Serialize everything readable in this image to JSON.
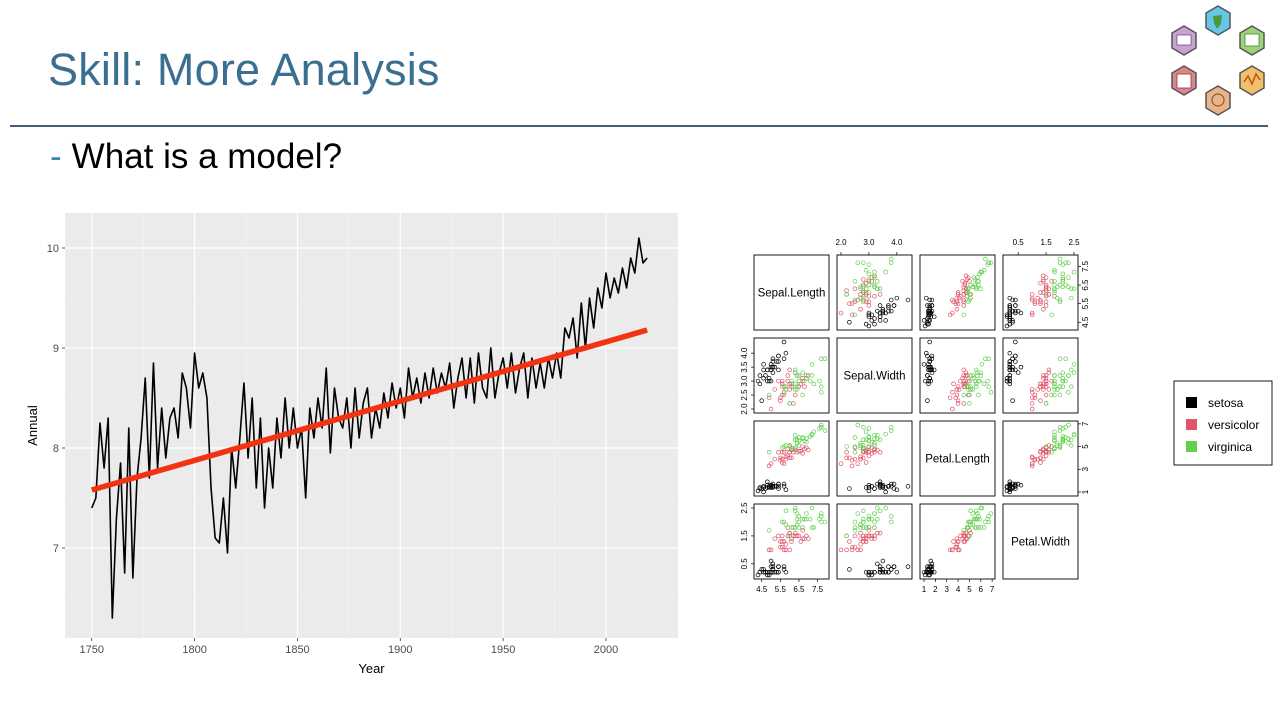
{
  "slide": {
    "title": "Skill: More Analysis",
    "bullet_dash": "-",
    "subtitle": "What is a model?"
  },
  "logo": {
    "icon": "hexagon-skills-logo",
    "hex_colors": [
      "#66c6e8",
      "#9fd07a",
      "#f1c06b",
      "#e9b48a",
      "#d9868c",
      "#c9a4cf"
    ]
  },
  "chart_data": [
    {
      "type": "line",
      "title": "",
      "xlabel": "Year",
      "ylabel": "Annual",
      "xlim": [
        1737,
        2035
      ],
      "ylim": [
        6.1,
        10.35
      ],
      "xticks": [
        1750,
        1800,
        1850,
        1900,
        1950,
        2000
      ],
      "yticks": [
        7,
        8,
        9,
        10
      ],
      "background": "#ebebeb",
      "grid": true,
      "series": [
        {
          "color": "#000000",
          "x": [
            1750,
            1752,
            1754,
            1756,
            1758,
            1760,
            1762,
            1764,
            1766,
            1768,
            1770,
            1772,
            1774,
            1776,
            1778,
            1780,
            1782,
            1784,
            1786,
            1788,
            1790,
            1792,
            1794,
            1796,
            1798,
            1800,
            1802,
            1804,
            1806,
            1808,
            1810,
            1812,
            1814,
            1816,
            1818,
            1820,
            1822,
            1824,
            1826,
            1828,
            1830,
            1832,
            1834,
            1836,
            1838,
            1840,
            1842,
            1844,
            1846,
            1848,
            1850,
            1852,
            1854,
            1856,
            1858,
            1860,
            1862,
            1864,
            1866,
            1868,
            1870,
            1872,
            1874,
            1876,
            1878,
            1880,
            1882,
            1884,
            1886,
            1888,
            1890,
            1892,
            1894,
            1896,
            1898,
            1900,
            1902,
            1904,
            1906,
            1908,
            1910,
            1912,
            1914,
            1916,
            1918,
            1920,
            1922,
            1924,
            1926,
            1928,
            1930,
            1932,
            1934,
            1936,
            1938,
            1940,
            1942,
            1944,
            1946,
            1948,
            1950,
            1952,
            1954,
            1956,
            1958,
            1960,
            1962,
            1964,
            1966,
            1968,
            1970,
            1972,
            1974,
            1976,
            1978,
            1980,
            1982,
            1984,
            1986,
            1988,
            1990,
            1992,
            1994,
            1996,
            1998,
            2000,
            2002,
            2004,
            2006,
            2008,
            2010,
            2012,
            2014,
            2016,
            2018,
            2020
          ],
          "y": [
            7.4,
            7.5,
            8.25,
            7.8,
            8.3,
            6.3,
            7.3,
            7.85,
            6.75,
            8.2,
            6.7,
            7.7,
            8.1,
            8.7,
            7.7,
            8.85,
            7.8,
            8.4,
            7.9,
            8.3,
            8.4,
            8.1,
            8.75,
            8.6,
            8.2,
            8.95,
            8.6,
            8.75,
            8.5,
            7.6,
            7.1,
            7.05,
            7.5,
            6.95,
            8.0,
            7.6,
            8.1,
            8.65,
            7.9,
            8.5,
            7.6,
            8.3,
            7.4,
            8.0,
            7.6,
            8.3,
            7.9,
            8.5,
            8.0,
            8.4,
            8.0,
            8.2,
            7.5,
            8.4,
            8.1,
            8.5,
            8.2,
            8.8,
            7.95,
            8.6,
            8.3,
            8.2,
            8.5,
            8.0,
            8.6,
            8.1,
            8.45,
            8.6,
            8.1,
            8.4,
            8.2,
            8.55,
            8.3,
            8.65,
            8.4,
            8.6,
            8.3,
            8.8,
            8.5,
            8.7,
            8.45,
            8.75,
            8.5,
            8.8,
            8.55,
            8.75,
            8.6,
            8.85,
            8.4,
            8.7,
            8.9,
            8.5,
            8.9,
            8.45,
            8.95,
            8.6,
            8.5,
            9.0,
            8.5,
            8.75,
            8.9,
            8.6,
            8.95,
            8.55,
            8.8,
            8.95,
            8.5,
            8.9,
            8.6,
            8.85,
            8.6,
            8.9,
            8.7,
            8.95,
            8.7,
            9.2,
            9.1,
            9.3,
            8.9,
            9.45,
            9.0,
            9.5,
            9.2,
            9.6,
            9.4,
            9.75,
            9.5,
            9.7,
            9.55,
            9.8,
            9.6,
            9.9,
            9.75,
            10.1,
            9.85,
            9.9
          ]
        },
        {
          "color": "#f23312",
          "x": [
            1750,
            2020
          ],
          "y": [
            7.58,
            9.18
          ]
        }
      ]
    },
    {
      "type": "scatter",
      "title": "",
      "variables": [
        "Sepal.Length",
        "Sepal.Width",
        "Petal.Length",
        "Petal.Width"
      ],
      "ranges": [
        [
          4.3,
          7.9
        ],
        [
          2.0,
          4.4
        ],
        [
          1.0,
          6.9
        ],
        [
          0.1,
          2.5
        ]
      ],
      "axis_ticks": {
        "Sepal.Length": [
          4.5,
          5.5,
          6.5,
          7.5
        ],
        "Sepal.Width": [
          2.0,
          3.0,
          4.0
        ],
        "Petal.Length": [
          1,
          2,
          3,
          4,
          5,
          6,
          7
        ],
        "Petal.Width": [
          0.5,
          1.5,
          2.5
        ]
      },
      "axis_tick_labels": {
        "Sepal.Length_bottom": [
          "4.5",
          "5.5",
          "6.5",
          "7.5"
        ],
        "Sepal.Length_right": [
          "4.5",
          "5.5",
          "6.5",
          "7.5"
        ],
        "Sepal.Width_top": [
          "2.0",
          "3.0",
          "4.0"
        ],
        "Sepal.Width_left": [
          "2.0",
          "2.5",
          "3.0",
          "3.5",
          "4.0"
        ],
        "Petal.Length_bottom": [
          "1",
          "2",
          "3",
          "4",
          "5",
          "6",
          "7"
        ],
        "Petal.Length_right": [
          "1",
          "3",
          "5",
          "7"
        ],
        "Petal.Width_top": [
          "0.5",
          "1.5",
          "2.5"
        ],
        "Petal.Width_left": [
          "0.5",
          "1.5",
          "2.5"
        ]
      },
      "legend": [
        {
          "label": "setosa",
          "color": "#000000"
        },
        {
          "label": "versicolor",
          "color": "#df536b"
        },
        {
          "label": "virginica",
          "color": "#61d04f"
        }
      ],
      "legend_position": "right",
      "species": [
        {
          "name": "setosa",
          "color": "#000000",
          "points": [
            [
              5.1,
              3.5,
              1.4,
              0.2
            ],
            [
              4.9,
              3.0,
              1.4,
              0.2
            ],
            [
              4.7,
              3.2,
              1.3,
              0.2
            ],
            [
              4.6,
              3.1,
              1.5,
              0.2
            ],
            [
              5.0,
              3.6,
              1.4,
              0.2
            ],
            [
              5.4,
              3.9,
              1.7,
              0.4
            ],
            [
              4.6,
              3.4,
              1.4,
              0.3
            ],
            [
              5.0,
              3.4,
              1.5,
              0.2
            ],
            [
              4.4,
              2.9,
              1.4,
              0.2
            ],
            [
              4.9,
              3.1,
              1.5,
              0.1
            ],
            [
              5.4,
              3.7,
              1.5,
              0.2
            ],
            [
              4.8,
              3.4,
              1.6,
              0.2
            ],
            [
              4.8,
              3.0,
              1.4,
              0.1
            ],
            [
              4.3,
              3.0,
              1.1,
              0.1
            ],
            [
              5.8,
              4.0,
              1.2,
              0.2
            ],
            [
              5.7,
              4.4,
              1.5,
              0.4
            ],
            [
              5.4,
              3.9,
              1.3,
              0.4
            ],
            [
              5.1,
              3.5,
              1.4,
              0.3
            ],
            [
              5.7,
              3.8,
              1.7,
              0.3
            ],
            [
              5.1,
              3.8,
              1.5,
              0.3
            ],
            [
              5.4,
              3.4,
              1.7,
              0.2
            ],
            [
              5.1,
              3.7,
              1.5,
              0.4
            ],
            [
              4.6,
              3.6,
              1.0,
              0.2
            ],
            [
              5.1,
              3.3,
              1.7,
              0.5
            ],
            [
              4.8,
              3.4,
              1.9,
              0.2
            ],
            [
              5.0,
              3.0,
              1.6,
              0.2
            ],
            [
              5.0,
              3.4,
              1.6,
              0.4
            ],
            [
              5.2,
              3.5,
              1.5,
              0.2
            ],
            [
              4.4,
              3.2,
              1.3,
              0.2
            ],
            [
              5.0,
              3.5,
              1.6,
              0.6
            ],
            [
              4.5,
              2.3,
              1.3,
              0.3
            ],
            [
              5.3,
              3.7,
              1.5,
              0.2
            ]
          ]
        },
        {
          "name": "versicolor",
          "color": "#df536b",
          "points": [
            [
              7.0,
              3.2,
              4.7,
              1.4
            ],
            [
              6.4,
              3.2,
              4.5,
              1.5
            ],
            [
              6.9,
              3.1,
              4.9,
              1.5
            ],
            [
              5.5,
              2.3,
              4.0,
              1.3
            ],
            [
              6.5,
              2.8,
              4.6,
              1.5
            ],
            [
              5.7,
              2.8,
              4.5,
              1.3
            ],
            [
              6.3,
              3.3,
              4.7,
              1.6
            ],
            [
              4.9,
              2.4,
              3.3,
              1.0
            ],
            [
              6.6,
              2.9,
              4.6,
              1.3
            ],
            [
              5.2,
              2.7,
              3.9,
              1.4
            ],
            [
              5.0,
              2.0,
              3.5,
              1.0
            ],
            [
              5.9,
              3.0,
              4.2,
              1.5
            ],
            [
              6.0,
              2.2,
              4.0,
              1.0
            ],
            [
              6.1,
              2.9,
              4.7,
              1.4
            ],
            [
              5.6,
              2.9,
              3.6,
              1.3
            ],
            [
              6.7,
              3.1,
              4.4,
              1.4
            ],
            [
              5.6,
              3.0,
              4.5,
              1.5
            ],
            [
              5.8,
              2.7,
              4.1,
              1.0
            ],
            [
              6.2,
              2.2,
              4.5,
              1.5
            ],
            [
              5.6,
              2.5,
              3.9,
              1.1
            ],
            [
              5.9,
              3.2,
              4.8,
              1.8
            ],
            [
              6.1,
              2.8,
              4.0,
              1.3
            ],
            [
              6.3,
              2.5,
              4.9,
              1.5
            ],
            [
              6.8,
              2.8,
              4.8,
              1.4
            ],
            [
              6.7,
              3.0,
              5.0,
              1.7
            ],
            [
              6.0,
              2.9,
              4.5,
              1.5
            ],
            [
              5.7,
              2.6,
              3.5,
              1.0
            ],
            [
              5.5,
              2.4,
              3.8,
              1.1
            ],
            [
              5.8,
              2.7,
              3.9,
              1.2
            ],
            [
              6.0,
              2.7,
              5.1,
              1.6
            ],
            [
              5.4,
              3.0,
              4.5,
              1.5
            ],
            [
              6.0,
              3.4,
              4.5,
              1.6
            ]
          ]
        },
        {
          "name": "virginica",
          "color": "#61d04f",
          "points": [
            [
              6.3,
              3.3,
              6.0,
              2.5
            ],
            [
              5.8,
              2.7,
              5.1,
              1.9
            ],
            [
              7.1,
              3.0,
              5.9,
              2.1
            ],
            [
              6.3,
              2.9,
              5.6,
              1.8
            ],
            [
              6.5,
              3.0,
              5.8,
              2.2
            ],
            [
              7.6,
              3.0,
              6.6,
              2.1
            ],
            [
              4.9,
              2.5,
              4.5,
              1.7
            ],
            [
              7.3,
              2.9,
              6.3,
              1.8
            ],
            [
              6.7,
              2.5,
              5.8,
              1.8
            ],
            [
              7.2,
              3.6,
              6.1,
              2.5
            ],
            [
              6.5,
              3.2,
              5.1,
              2.0
            ],
            [
              6.4,
              2.7,
              5.3,
              1.9
            ],
            [
              6.8,
              3.0,
              5.5,
              2.1
            ],
            [
              5.7,
              2.5,
              5.0,
              2.0
            ],
            [
              5.8,
              2.8,
              5.1,
              2.4
            ],
            [
              6.4,
              3.2,
              5.3,
              2.3
            ],
            [
              6.5,
              3.0,
              5.5,
              1.8
            ],
            [
              7.7,
              3.8,
              6.7,
              2.2
            ],
            [
              7.7,
              2.6,
              6.9,
              2.3
            ],
            [
              6.0,
              2.2,
              5.0,
              1.5
            ],
            [
              6.9,
              3.2,
              5.7,
              2.3
            ],
            [
              5.6,
              2.8,
              4.9,
              2.0
            ],
            [
              7.7,
              2.8,
              6.7,
              2.0
            ],
            [
              6.3,
              2.7,
              4.9,
              1.8
            ],
            [
              6.7,
              3.3,
              5.7,
              2.1
            ],
            [
              7.2,
              3.2,
              6.0,
              1.8
            ],
            [
              6.2,
              2.8,
              4.8,
              1.8
            ],
            [
              6.1,
              3.0,
              4.9,
              1.8
            ],
            [
              6.4,
              2.8,
              5.6,
              2.1
            ],
            [
              7.9,
              3.8,
              6.4,
              2.0
            ],
            [
              6.3,
              3.4,
              5.6,
              2.4
            ],
            [
              6.9,
              3.1,
              5.4,
              2.1
            ]
          ]
        }
      ]
    }
  ]
}
